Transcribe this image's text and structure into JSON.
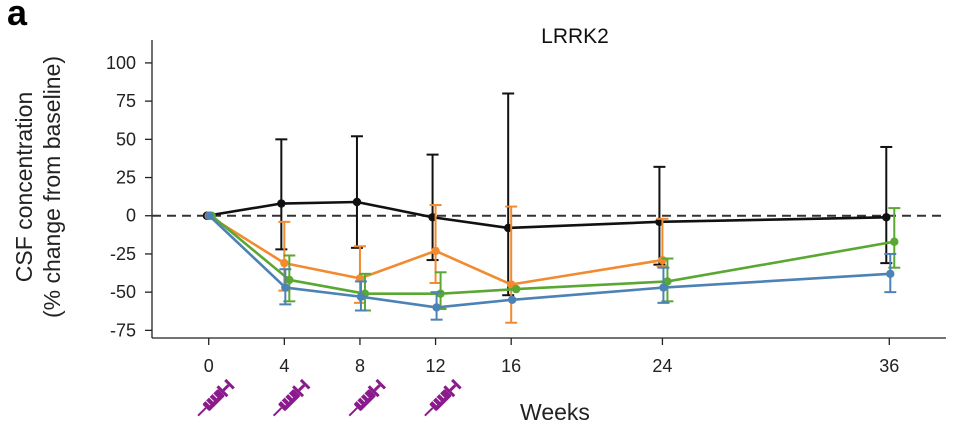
{
  "panel_label": "a",
  "chart_data": {
    "type": "line",
    "title": "LRRK2",
    "xlabel": "Weeks",
    "ylabel_line1": "CSF concentration",
    "ylabel_line2": "(% change from baseline)",
    "xlim": [
      -3,
      39
    ],
    "ylim": [
      -80,
      115
    ],
    "xticks": [
      0,
      4,
      8,
      12,
      16,
      24,
      36
    ],
    "yticks": [
      100,
      75,
      50,
      25,
      0,
      -25,
      -50,
      -75
    ],
    "reference_line": {
      "y": 0,
      "style": "dashed",
      "color": "#333333"
    },
    "injection_weeks": [
      0,
      4,
      8,
      12
    ],
    "injection_color": "#8b1a8c",
    "series": [
      {
        "name": "black",
        "color": "#111111",
        "x": [
          0,
          4,
          8,
          12,
          16,
          24,
          36
        ],
        "y": [
          0,
          8,
          9,
          -1,
          -8,
          -4,
          -1
        ],
        "err_low": [
          0,
          30,
          30,
          28,
          44,
          28,
          30
        ],
        "err_high": [
          0,
          42,
          43,
          41,
          88,
          36,
          46
        ]
      },
      {
        "name": "orange",
        "color": "#f28a30",
        "x": [
          0,
          4,
          8,
          12,
          16,
          24
        ],
        "y": [
          0,
          -31,
          -41,
          -23,
          -45,
          -29
        ],
        "err_low": [
          0,
          18,
          16,
          21,
          25,
          4
        ],
        "err_high": [
          0,
          27,
          21,
          30,
          51,
          27
        ]
      },
      {
        "name": "green",
        "color": "#5aa832",
        "x": [
          0,
          4,
          8,
          12,
          16,
          24,
          36
        ],
        "y": [
          0,
          -42,
          -51,
          -51,
          -48,
          -43,
          -17
        ],
        "err_low": [
          0,
          14,
          11,
          10,
          0,
          13,
          17
        ],
        "err_high": [
          0,
          16,
          13,
          14,
          0,
          15,
          22
        ]
      },
      {
        "name": "blue",
        "color": "#4c82b4",
        "x": [
          0,
          4,
          8,
          12,
          16,
          24,
          36
        ],
        "y": [
          0,
          -47,
          -53,
          -60,
          -55,
          -47,
          -38
        ],
        "err_low": [
          0,
          11,
          9,
          8,
          0,
          10,
          12
        ],
        "err_high": [
          0,
          12,
          10,
          10,
          0,
          13,
          13
        ]
      }
    ]
  }
}
